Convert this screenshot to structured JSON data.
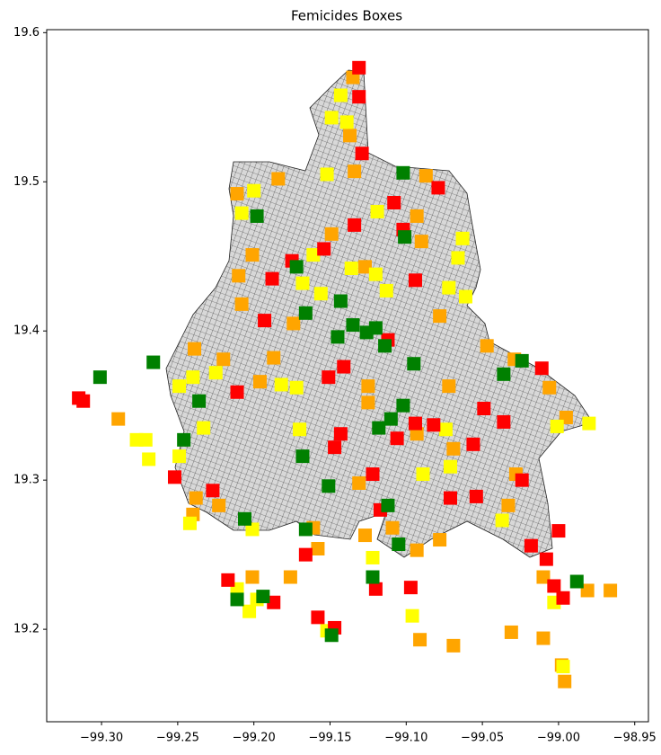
{
  "chart_data": {
    "type": "scatter",
    "title": "Femicides Boxes",
    "xlim": [
      -99.336,
      -98.941
    ],
    "ylim": [
      19.138,
      19.602
    ],
    "xticks": [
      {
        "value": -99.3,
        "label": "−99.30"
      },
      {
        "value": -99.25,
        "label": "−99.25"
      },
      {
        "value": -99.2,
        "label": "−99.20"
      },
      {
        "value": -99.15,
        "label": "−99.15"
      },
      {
        "value": -99.1,
        "label": "−99.10"
      },
      {
        "value": -99.05,
        "label": "−99.05"
      },
      {
        "value": -99.0,
        "label": "−99.00"
      },
      {
        "value": -98.95,
        "label": "−98.95"
      }
    ],
    "yticks": [
      19.2,
      19.3,
      19.4,
      19.5,
      19.6
    ],
    "series": [
      {
        "color": "#ffa500",
        "x": [
          -99.135,
          -99.137,
          -99.134,
          -99.087,
          -99.184,
          -99.211,
          -99.093,
          -99.149,
          -99.09,
          -99.201,
          -99.21,
          -99.127,
          -99.208,
          -99.174,
          -99.078,
          -99.239,
          -99.22,
          -99.187,
          -99.047,
          -99.029,
          -99.196,
          -99.125,
          -99.072,
          -99.006,
          -99.289,
          -98.995,
          -99.125,
          -99.093,
          -99.069,
          -99.028,
          -99.238,
          -99.223,
          -99.033,
          -99.24,
          -99.161,
          -99.131,
          -99.109,
          -99.127,
          -99.158,
          -99.093,
          -99.078,
          -99.01,
          -99.201,
          -99.176,
          -98.981,
          -98.966,
          -99.031,
          -99.091,
          -99.069,
          -99.01,
          -98.998,
          -98.996
        ],
        "values": [
          19.57,
          19.531,
          19.507,
          19.504,
          19.502,
          19.492,
          19.477,
          19.465,
          19.46,
          19.451,
          19.437,
          19.443,
          19.418,
          19.405,
          19.41,
          19.388,
          19.381,
          19.382,
          19.39,
          19.381,
          19.366,
          19.363,
          19.363,
          19.362,
          19.341,
          19.342,
          19.352,
          19.331,
          19.321,
          19.304,
          19.288,
          19.283,
          19.283,
          19.277,
          19.268,
          19.298,
          19.268,
          19.263,
          19.254,
          19.253,
          19.26,
          19.235,
          19.235,
          19.235,
          19.226,
          19.226,
          19.198,
          19.193,
          19.189,
          19.194,
          19.176,
          19.165
        ]
      },
      {
        "color": "#ffff00",
        "x": [
          -99.149,
          -99.143,
          -99.139,
          -99.152,
          -99.2,
          -99.208,
          -99.119,
          -99.063,
          -99.066,
          -99.161,
          -99.136,
          -99.12,
          -99.113,
          -99.168,
          -99.156,
          -99.061,
          -99.072,
          -99.225,
          -99.249,
          -99.24,
          -99.182,
          -99.172,
          -99.233,
          -99.277,
          -99.271,
          -99.269,
          -99.17,
          -99.074,
          -98.98,
          -99.001,
          -99.089,
          -99.071,
          -99.249,
          -99.242,
          -99.201,
          -99.122,
          -99.037,
          -99.211,
          -99.198,
          -99.203,
          -99.096,
          -99.152,
          -99.003,
          -98.997
        ],
        "values": [
          19.543,
          19.558,
          19.54,
          19.505,
          19.494,
          19.479,
          19.48,
          19.462,
          19.449,
          19.451,
          19.442,
          19.438,
          19.427,
          19.432,
          19.425,
          19.423,
          19.429,
          19.372,
          19.363,
          19.369,
          19.364,
          19.362,
          19.335,
          19.327,
          19.327,
          19.314,
          19.334,
          19.334,
          19.338,
          19.336,
          19.304,
          19.309,
          19.316,
          19.271,
          19.267,
          19.248,
          19.273,
          19.227,
          19.22,
          19.212,
          19.209,
          19.199,
          19.218,
          19.175
        ]
      },
      {
        "color": "#ff0000",
        "x": [
          -99.131,
          -99.131,
          -99.129,
          -99.079,
          -99.108,
          -99.134,
          -99.102,
          -99.154,
          -99.175,
          -99.188,
          -99.094,
          -99.193,
          -99.112,
          -99.141,
          -99.011,
          -99.211,
          -99.151,
          -99.049,
          -99.094,
          -99.082,
          -99.036,
          -99.143,
          -99.106,
          -99.147,
          -99.056,
          -99.252,
          -99.122,
          -99.227,
          -99.024,
          -99.071,
          -99.054,
          -99.117,
          -99.018,
          -99.008,
          -99.0,
          -99.166,
          -99.217,
          -99.12,
          -99.097,
          -99.003,
          -98.997,
          -99.187,
          -99.158,
          -99.147,
          -99.315,
          -99.312
        ],
        "values": [
          19.5765,
          19.557,
          19.519,
          19.496,
          19.486,
          19.471,
          19.468,
          19.455,
          19.447,
          19.435,
          19.434,
          19.407,
          19.394,
          19.376,
          19.375,
          19.359,
          19.369,
          19.348,
          19.338,
          19.337,
          19.339,
          19.331,
          19.328,
          19.322,
          19.324,
          19.302,
          19.304,
          19.293,
          19.3,
          19.288,
          19.289,
          19.28,
          19.256,
          19.247,
          19.266,
          19.25,
          19.233,
          19.227,
          19.228,
          19.229,
          19.221,
          19.218,
          19.208,
          19.201,
          19.355,
          19.353
        ]
      },
      {
        "color": "#008000",
        "x": [
          -99.301,
          -99.266,
          -99.236,
          -99.246,
          -99.198,
          -99.102,
          -99.101,
          -99.172,
          -99.166,
          -99.143,
          -99.135,
          -99.145,
          -99.12,
          -99.126,
          -99.114,
          -99.095,
          -99.024,
          -99.036,
          -99.102,
          -99.11,
          -99.118,
          -99.168,
          -99.151,
          -99.112,
          -99.206,
          -99.166,
          -99.105,
          -99.122,
          -98.988,
          -99.211,
          -99.194,
          -99.149
        ],
        "values": [
          19.369,
          19.379,
          19.353,
          19.327,
          19.477,
          19.506,
          19.463,
          19.443,
          19.412,
          19.42,
          19.404,
          19.396,
          19.402,
          19.399,
          19.39,
          19.378,
          19.38,
          19.371,
          19.35,
          19.341,
          19.335,
          19.316,
          19.296,
          19.283,
          19.274,
          19.267,
          19.257,
          19.235,
          19.232,
          19.22,
          19.222,
          19.196
        ]
      }
    ]
  }
}
